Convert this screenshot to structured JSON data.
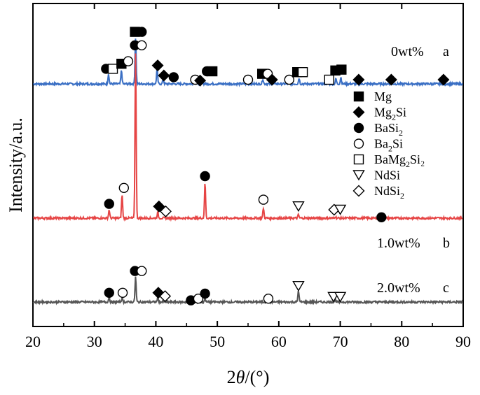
{
  "chart_data": {
    "type": "line",
    "title": "",
    "xlabel_prefix": "2",
    "xlabel_theta": "θ",
    "xlabel_suffix": "/(°)",
    "ylabel": "Intensity/a.u.",
    "xlim": [
      20,
      90
    ],
    "xticks": [
      20,
      30,
      40,
      50,
      60,
      70,
      80,
      90
    ],
    "grid": false,
    "legend_position": "right",
    "colors": {
      "a": "#3a6fc4",
      "b": "#e64545",
      "c": "#555555"
    },
    "legend": [
      {
        "marker": "filled-square",
        "label": "Mg",
        "sub": "",
        "tail": ""
      },
      {
        "marker": "filled-diamond",
        "label": "Mg",
        "sub": "2",
        "tail": "Si"
      },
      {
        "marker": "filled-circle",
        "label": "BaSi",
        "sub": "2",
        "tail": ""
      },
      {
        "marker": "open-circle",
        "label": "Ba",
        "sub": "2",
        "tail": "Si"
      },
      {
        "marker": "open-square",
        "label": "BaMg",
        "sub": "2",
        "tail": "Si₂"
      },
      {
        "marker": "open-triangle-down",
        "label": "NdSi",
        "sub": "",
        "tail": ""
      },
      {
        "marker": "open-diamond",
        "label": "NdSi",
        "sub": "2",
        "tail": ""
      }
    ],
    "series": [
      {
        "name_label": "0wt%",
        "letter": "a",
        "color_key": "a",
        "offset": 2.6,
        "peaks": [
          {
            "x": 32.3,
            "h": 0.12
          },
          {
            "x": 34.4,
            "h": 0.16
          },
          {
            "x": 36.7,
            "h": 0.55
          },
          {
            "x": 40.2,
            "h": 0.18
          },
          {
            "x": 41.2,
            "h": 0.06
          },
          {
            "x": 46.3,
            "h": 0.03
          },
          {
            "x": 47.5,
            "h": 0.06
          },
          {
            "x": 57.4,
            "h": 0.06
          },
          {
            "x": 63.3,
            "h": 0.07
          },
          {
            "x": 69.3,
            "h": 0.06
          },
          {
            "x": 70.1,
            "h": 0.08
          }
        ],
        "markers": [
          {
            "x": 31.9,
            "y": 0.18,
            "m": "filled-circle"
          },
          {
            "x": 33.0,
            "y": 0.18,
            "m": "open-square"
          },
          {
            "x": 34.4,
            "y": 0.24,
            "m": "filled-square"
          },
          {
            "x": 35.5,
            "y": 0.27,
            "m": "open-circle"
          },
          {
            "x": 36.6,
            "y": 0.62,
            "m": "filled-square"
          },
          {
            "x": 37.7,
            "y": 0.62,
            "m": "filled-circle"
          },
          {
            "x": 40.3,
            "y": 0.22,
            "m": "filled-diamond"
          },
          {
            "x": 41.3,
            "y": 0.1,
            "m": "filled-diamond"
          },
          {
            "x": 42.9,
            "y": 0.08,
            "m": "filled-circle"
          },
          {
            "x": 46.4,
            "y": 0.05,
            "m": "open-circle"
          },
          {
            "x": 47.2,
            "y": 0.04,
            "m": "filled-diamond"
          },
          {
            "x": 48.3,
            "y": 0.15,
            "m": "filled-circle"
          },
          {
            "x": 49.2,
            "y": 0.15,
            "m": "filled-square"
          },
          {
            "x": 55.0,
            "y": 0.05,
            "m": "open-circle"
          },
          {
            "x": 57.3,
            "y": 0.12,
            "m": "filled-square"
          },
          {
            "x": 58.2,
            "y": 0.12,
            "m": "open-circle"
          },
          {
            "x": 58.9,
            "y": 0.05,
            "m": "filled-diamond"
          },
          {
            "x": 61.7,
            "y": 0.05,
            "m": "open-circle"
          },
          {
            "x": 63.0,
            "y": 0.14,
            "m": "filled-square"
          },
          {
            "x": 63.9,
            "y": 0.14,
            "m": "open-square"
          },
          {
            "x": 68.2,
            "y": 0.05,
            "m": "open-square"
          },
          {
            "x": 69.2,
            "y": 0.16,
            "m": "filled-square"
          },
          {
            "x": 70.2,
            "y": 0.17,
            "m": "filled-square"
          },
          {
            "x": 73.0,
            "y": 0.05,
            "m": "filled-diamond"
          },
          {
            "x": 78.3,
            "y": 0.05,
            "m": "filled-diamond"
          },
          {
            "x": 86.8,
            "y": 0.05,
            "m": "filled-diamond"
          }
        ]
      },
      {
        "name_label": "1.0wt%",
        "letter": "b",
        "color_key": "b",
        "offset": 1.0,
        "peaks": [
          {
            "x": 32.4,
            "h": 0.1
          },
          {
            "x": 34.5,
            "h": 0.28
          },
          {
            "x": 36.7,
            "h": 1.98
          },
          {
            "x": 40.3,
            "h": 0.07
          },
          {
            "x": 48.0,
            "h": 0.42
          },
          {
            "x": 57.5,
            "h": 0.12
          },
          {
            "x": 63.2,
            "h": 0.04
          },
          {
            "x": 69.2,
            "h": 0.02
          }
        ],
        "markers": [
          {
            "x": 32.4,
            "y": 0.17,
            "m": "filled-circle"
          },
          {
            "x": 34.8,
            "y": 0.36,
            "m": "open-circle"
          },
          {
            "x": 36.6,
            "y": 2.06,
            "m": "filled-circle"
          },
          {
            "x": 37.7,
            "y": 2.06,
            "m": "open-circle"
          },
          {
            "x": 40.5,
            "y": 0.14,
            "m": "filled-diamond"
          },
          {
            "x": 41.6,
            "y": 0.08,
            "m": "open-diamond"
          },
          {
            "x": 48.0,
            "y": 0.5,
            "m": "filled-circle"
          },
          {
            "x": 57.5,
            "y": 0.22,
            "m": "open-circle"
          },
          {
            "x": 63.2,
            "y": 0.14,
            "m": "open-triangle-down"
          },
          {
            "x": 69.0,
            "y": 0.1,
            "m": "open-diamond"
          },
          {
            "x": 70.0,
            "y": 0.1,
            "m": "open-triangle-down"
          },
          {
            "x": 76.7,
            "y": 0.01,
            "m": "filled-circle"
          }
        ]
      },
      {
        "name_label": "2.0wt%",
        "letter": "c",
        "color_key": "c",
        "offset": 0.0,
        "peaks": [
          {
            "x": 32.4,
            "h": 0.06
          },
          {
            "x": 34.5,
            "h": 0.05
          },
          {
            "x": 36.7,
            "h": 0.3
          },
          {
            "x": 40.3,
            "h": 0.05
          },
          {
            "x": 48.0,
            "h": 0.05
          },
          {
            "x": 63.2,
            "h": 0.14
          },
          {
            "x": 69.2,
            "h": 0.03
          }
        ],
        "markers": [
          {
            "x": 32.4,
            "y": 0.11,
            "m": "filled-circle"
          },
          {
            "x": 34.6,
            "y": 0.11,
            "m": "open-circle"
          },
          {
            "x": 36.6,
            "y": 0.37,
            "m": "filled-circle"
          },
          {
            "x": 37.7,
            "y": 0.37,
            "m": "open-circle"
          },
          {
            "x": 40.4,
            "y": 0.11,
            "m": "filled-diamond"
          },
          {
            "x": 41.5,
            "y": 0.07,
            "m": "open-diamond"
          },
          {
            "x": 45.7,
            "y": 0.02,
            "m": "filled-circle"
          },
          {
            "x": 46.9,
            "y": 0.04,
            "m": "open-circle"
          },
          {
            "x": 48.0,
            "y": 0.1,
            "m": "filled-circle"
          },
          {
            "x": 58.3,
            "y": 0.04,
            "m": "open-circle"
          },
          {
            "x": 63.2,
            "y": 0.19,
            "m": "open-triangle-down"
          },
          {
            "x": 68.9,
            "y": 0.06,
            "m": "open-triangle-down"
          },
          {
            "x": 70.0,
            "y": 0.06,
            "m": "open-triangle-down"
          }
        ]
      }
    ]
  }
}
